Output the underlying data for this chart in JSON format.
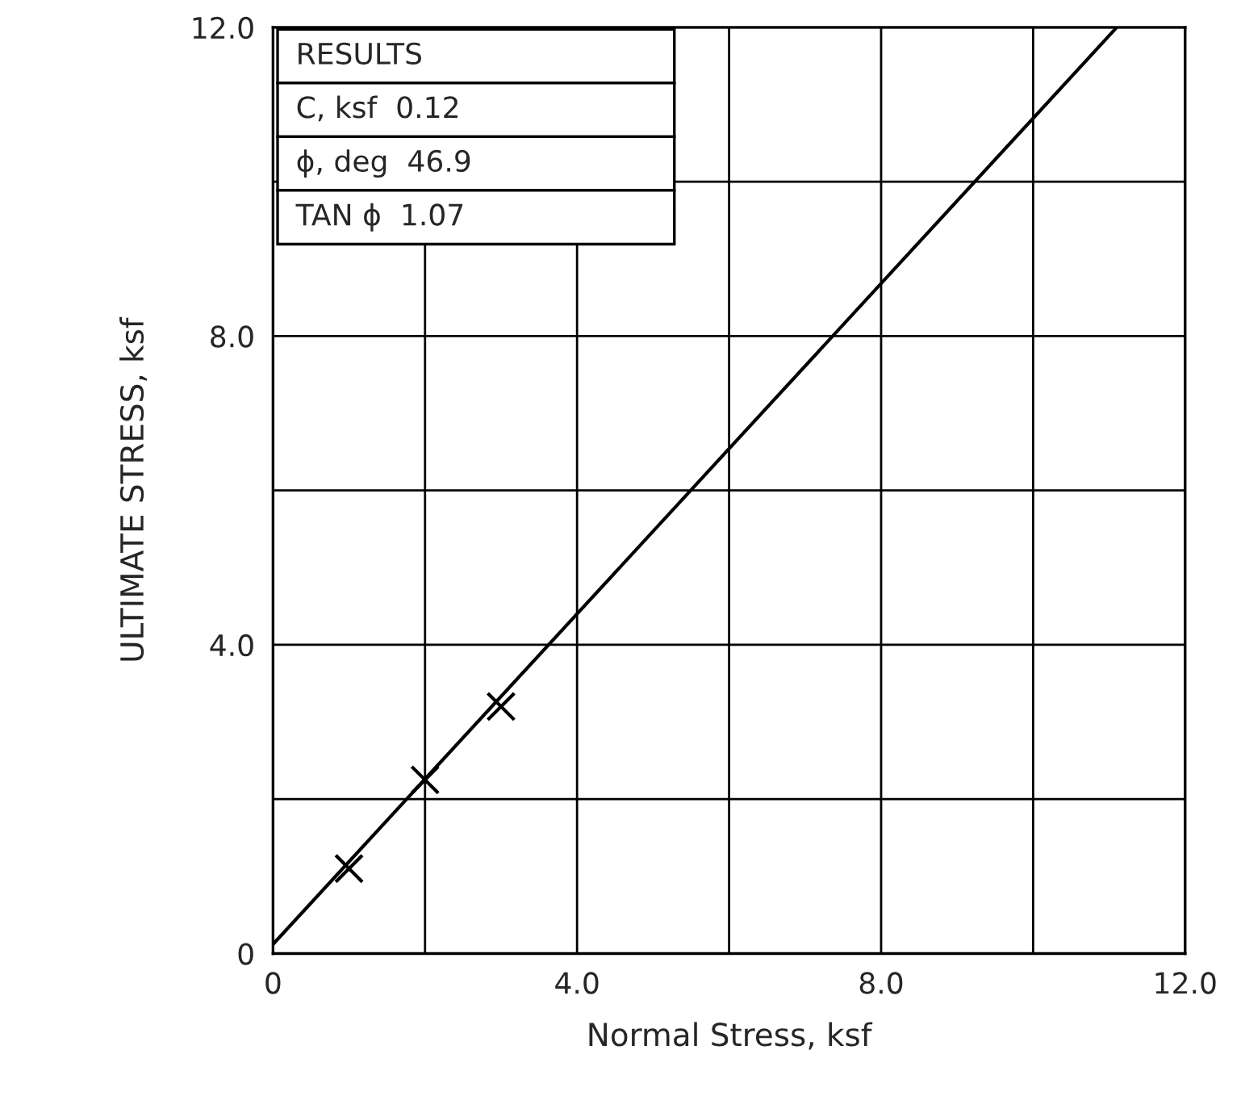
{
  "chart_data": {
    "type": "scatter",
    "xlabel": "Normal Stress, ksf",
    "ylabel": "ULTIMATE STRESS, ksf",
    "series": [
      {
        "color": "#000000",
        "marker": "cross",
        "x": [
          1.0,
          2.0,
          3.0
        ],
        "values": [
          1.1,
          2.25,
          3.2
        ]
      },
      {
        "type": "line",
        "color": "#000000",
        "marker": "none",
        "line_style": "solid",
        "x": [
          0,
          11.1
        ],
        "values": [
          0.12,
          12.0
        ]
      }
    ],
    "annotations": [
      "RESULTS",
      "C, ksf  0.12",
      "ϕ, deg  46.9",
      "TAN ϕ  1.07"
    ],
    "xlim": [
      0,
      12
    ],
    "ylim": [
      0,
      12
    ],
    "xticks": [
      0,
      {
        "value": 2,
        "label": null
      },
      {
        "value": 4,
        "label": "4.0"
      },
      {
        "value": 6,
        "label": null
      },
      {
        "value": 8,
        "label": "8.0"
      },
      {
        "value": 10,
        "label": null
      },
      {
        "value": 12,
        "label": "12.0"
      }
    ],
    "yticks": [
      0,
      {
        "value": 2,
        "label": null
      },
      {
        "value": 4,
        "label": "4.0"
      },
      {
        "value": 6,
        "label": null
      },
      {
        "value": 8,
        "label": "8.0"
      },
      {
        "value": 10,
        "label": null
      },
      {
        "value": 12,
        "label": "12.0"
      }
    ],
    "grid": true,
    "legend": false
  }
}
